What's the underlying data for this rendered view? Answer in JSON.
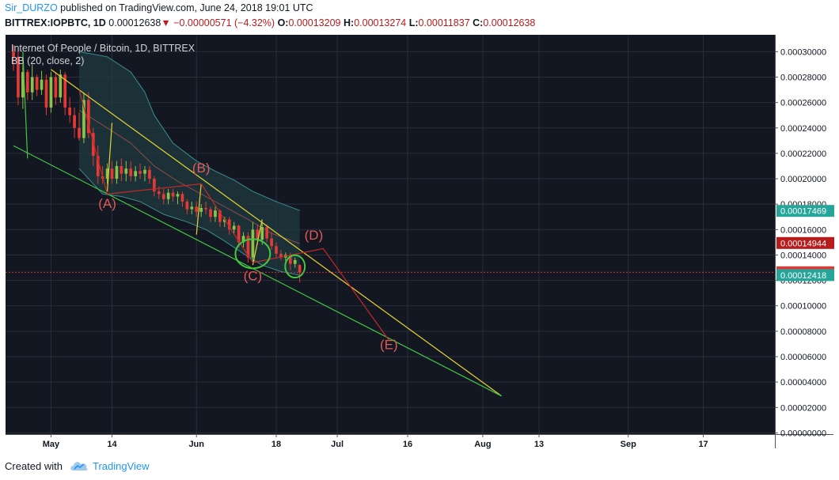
{
  "header": {
    "author": "Sir_DURZO",
    "published": "published on TradingView.com, June 24, 2018 19:01 UTC",
    "symbol_line": "BITTREX:IOPBTC, 1D",
    "last": "0.00012638",
    "change_arrow": "▼",
    "change": "−0.00000571 (−4.32%)",
    "o_label": "O:",
    "o_value": "0.00013209",
    "h_label": "H:",
    "h_value": "0.00013274",
    "l_label": "L:",
    "l_value": "0.00011837",
    "c_label": "C:",
    "c_value": "0.00012638"
  },
  "footer": {
    "created_with": "Created with",
    "brand": "TradingView"
  },
  "colors": {
    "background": "#131722",
    "grid": "#2a2e39",
    "up": "#8bc34a",
    "down": "#e53935",
    "bb_band": "#3a8d93",
    "bb_fill": "#1f3b3f",
    "bb_basis": "#8b4a4a",
    "trend_yellow": "#e6d333",
    "trend_green": "#43c743",
    "wave_red": "#c62828",
    "wave_label": "#e05a5a",
    "axis_text": "#131722"
  },
  "chart_data": {
    "type": "candlestick",
    "title": "Internet Of People / Bitcoin, 1D, BITTREX",
    "indicator": "BB (20, close, 2)",
    "x_ticks": [
      {
        "label": "May",
        "date": "2018-05-01"
      },
      {
        "label": "14",
        "date": "2018-05-14"
      },
      {
        "label": "Jun",
        "date": "2018-06-01"
      },
      {
        "label": "18",
        "date": "2018-06-18"
      },
      {
        "label": "Jul",
        "date": "2018-07-01"
      },
      {
        "label": "16",
        "date": "2018-07-16"
      },
      {
        "label": "Aug",
        "date": "2018-08-01"
      },
      {
        "label": "13",
        "date": "2018-08-13"
      },
      {
        "label": "Sep",
        "date": "2018-09-01"
      },
      {
        "label": "17",
        "date": "2018-09-17"
      }
    ],
    "xlim": [
      "2018-04-23",
      "2018-09-25"
    ],
    "y_ticks": [
      "0.00000000",
      "0.00002000",
      "0.00004000",
      "0.00006000",
      "0.00008000",
      "0.00010000",
      "0.00012000",
      "0.00014000",
      "0.00016000",
      "0.00018000",
      "0.00020000",
      "0.00022000",
      "0.00024000",
      "0.00026000",
      "0.00028000",
      "0.00030000"
    ],
    "ylim": [
      -1e-06,
      0.0003133
    ],
    "price_labels": [
      {
        "text": "0.00017469",
        "value": 0.00017469,
        "color": "#26a69a"
      },
      {
        "text": "0.00014944",
        "value": 0.00014944,
        "color": "#b71c1c"
      },
      {
        "text": "0.00012638",
        "value": 0.00012638,
        "color": "#e53935"
      },
      {
        "text": "0.00012418",
        "value": 0.00012418,
        "color": "#26a69a"
      }
    ],
    "current_price": 0.00012638,
    "candles": [
      {
        "d": "2018-04-23",
        "o": 0.0003,
        "h": 0.000305,
        "l": 0.000285,
        "c": 0.000296
      },
      {
        "d": "2018-04-24",
        "o": 0.000296,
        "h": 0.0003,
        "l": 0.000258,
        "c": 0.000264
      },
      {
        "d": "2018-04-25",
        "o": 0.000264,
        "h": 0.00029,
        "l": 0.000255,
        "c": 0.000284
      },
      {
        "d": "2018-04-26",
        "o": 0.000284,
        "h": 0.000286,
        "l": 0.000262,
        "c": 0.000268
      },
      {
        "d": "2018-04-27",
        "o": 0.000268,
        "h": 0.00029,
        "l": 0.000262,
        "c": 0.00028
      },
      {
        "d": "2018-04-28",
        "o": 0.00028,
        "h": 0.000282,
        "l": 0.000265,
        "c": 0.00027
      },
      {
        "d": "2018-04-29",
        "o": 0.00027,
        "h": 0.000285,
        "l": 0.000266,
        "c": 0.000278
      },
      {
        "d": "2018-04-30",
        "o": 0.000278,
        "h": 0.000282,
        "l": 0.00025,
        "c": 0.000256
      },
      {
        "d": "2018-05-01",
        "o": 0.000256,
        "h": 0.000284,
        "l": 0.000252,
        "c": 0.00028
      },
      {
        "d": "2018-05-02",
        "o": 0.00028,
        "h": 0.000284,
        "l": 0.000258,
        "c": 0.000264
      },
      {
        "d": "2018-05-03",
        "o": 0.000264,
        "h": 0.000286,
        "l": 0.00026,
        "c": 0.000282
      },
      {
        "d": "2018-05-04",
        "o": 0.000282,
        "h": 0.000284,
        "l": 0.00025,
        "c": 0.000256
      },
      {
        "d": "2018-05-05",
        "o": 0.000256,
        "h": 0.000264,
        "l": 0.000244,
        "c": 0.00025
      },
      {
        "d": "2018-05-06",
        "o": 0.00025,
        "h": 0.000256,
        "l": 0.000232,
        "c": 0.00024
      },
      {
        "d": "2018-05-07",
        "o": 0.00024,
        "h": 0.000252,
        "l": 0.00023,
        "c": 0.000232
      },
      {
        "d": "2018-05-08",
        "o": 0.000232,
        "h": 0.000268,
        "l": 0.000228,
        "c": 0.000262
      },
      {
        "d": "2018-05-09",
        "o": 0.000262,
        "h": 0.000268,
        "l": 0.000232,
        "c": 0.000236
      },
      {
        "d": "2018-05-10",
        "o": 0.000236,
        "h": 0.00024,
        "l": 0.00021,
        "c": 0.000218
      },
      {
        "d": "2018-05-11",
        "o": 0.000218,
        "h": 0.000226,
        "l": 0.000196,
        "c": 0.000202
      },
      {
        "d": "2018-05-12",
        "o": 0.000202,
        "h": 0.00021,
        "l": 0.000196,
        "c": 0.0002
      },
      {
        "d": "2018-05-13",
        "o": 0.0002,
        "h": 0.000212,
        "l": 0.000196,
        "c": 0.000208
      },
      {
        "d": "2018-05-14",
        "o": 0.000208,
        "h": 0.000214,
        "l": 0.000196,
        "c": 0.0002
      },
      {
        "d": "2018-05-15",
        "o": 0.0002,
        "h": 0.000214,
        "l": 0.000196,
        "c": 0.00021
      },
      {
        "d": "2018-05-16",
        "o": 0.00021,
        "h": 0.000216,
        "l": 0.000198,
        "c": 0.000204
      },
      {
        "d": "2018-05-17",
        "o": 0.000204,
        "h": 0.000214,
        "l": 0.000198,
        "c": 0.000208
      },
      {
        "d": "2018-05-18",
        "o": 0.000208,
        "h": 0.000214,
        "l": 0.000198,
        "c": 0.000202
      },
      {
        "d": "2018-05-19",
        "o": 0.000202,
        "h": 0.00021,
        "l": 0.000198,
        "c": 0.000206
      },
      {
        "d": "2018-05-20",
        "o": 0.000206,
        "h": 0.000212,
        "l": 0.0002,
        "c": 0.000204
      },
      {
        "d": "2018-05-21",
        "o": 0.000204,
        "h": 0.00021,
        "l": 0.000198,
        "c": 0.000207
      },
      {
        "d": "2018-05-22",
        "o": 0.000207,
        "h": 0.00021,
        "l": 0.000196,
        "c": 0.0002
      },
      {
        "d": "2018-05-23",
        "o": 0.0002,
        "h": 0.000202,
        "l": 0.000186,
        "c": 0.00019
      },
      {
        "d": "2018-05-24",
        "o": 0.00019,
        "h": 0.000194,
        "l": 0.000184,
        "c": 0.000188
      },
      {
        "d": "2018-05-25",
        "o": 0.000188,
        "h": 0.000192,
        "l": 0.00018,
        "c": 0.000184
      },
      {
        "d": "2018-05-26",
        "o": 0.000184,
        "h": 0.000192,
        "l": 0.00018,
        "c": 0.000189
      },
      {
        "d": "2018-05-27",
        "o": 0.000189,
        "h": 0.000192,
        "l": 0.000182,
        "c": 0.000186
      },
      {
        "d": "2018-05-28",
        "o": 0.000186,
        "h": 0.00019,
        "l": 0.00018,
        "c": 0.000188
      },
      {
        "d": "2018-05-29",
        "o": 0.000188,
        "h": 0.00019,
        "l": 0.000178,
        "c": 0.000182
      },
      {
        "d": "2018-05-30",
        "o": 0.000182,
        "h": 0.000184,
        "l": 0.000172,
        "c": 0.000176
      },
      {
        "d": "2018-05-31",
        "o": 0.000176,
        "h": 0.000182,
        "l": 0.000172,
        "c": 0.000178
      },
      {
        "d": "2018-06-01",
        "o": 0.000178,
        "h": 0.000182,
        "l": 0.00017,
        "c": 0.000174
      },
      {
        "d": "2018-06-02",
        "o": 0.000174,
        "h": 0.00018,
        "l": 0.00017,
        "c": 0.000177
      },
      {
        "d": "2018-06-03",
        "o": 0.000177,
        "h": 0.000182,
        "l": 0.000172,
        "c": 0.000176
      },
      {
        "d": "2018-06-04",
        "o": 0.000176,
        "h": 0.000178,
        "l": 0.000166,
        "c": 0.00017
      },
      {
        "d": "2018-06-05",
        "o": 0.00017,
        "h": 0.000178,
        "l": 0.000166,
        "c": 0.000175
      },
      {
        "d": "2018-06-06",
        "o": 0.000175,
        "h": 0.000176,
        "l": 0.000162,
        "c": 0.000166
      },
      {
        "d": "2018-06-07",
        "o": 0.000166,
        "h": 0.00017,
        "l": 0.000162,
        "c": 0.000168
      },
      {
        "d": "2018-06-08",
        "o": 0.000168,
        "h": 0.00017,
        "l": 0.000156,
        "c": 0.00016
      },
      {
        "d": "2018-06-09",
        "o": 0.00016,
        "h": 0.000166,
        "l": 0.000156,
        "c": 0.000163
      },
      {
        "d": "2018-06-10",
        "o": 0.000163,
        "h": 0.000164,
        "l": 0.000146,
        "c": 0.00015
      },
      {
        "d": "2018-06-11",
        "o": 0.00015,
        "h": 0.000158,
        "l": 0.000146,
        "c": 0.000155
      },
      {
        "d": "2018-06-12",
        "o": 0.000155,
        "h": 0.000158,
        "l": 0.000134,
        "c": 0.000138
      },
      {
        "d": "2018-06-13",
        "o": 0.000138,
        "h": 0.000166,
        "l": 0.000134,
        "c": 0.00016
      },
      {
        "d": "2018-06-14",
        "o": 0.00016,
        "h": 0.000164,
        "l": 0.000148,
        "c": 0.000152
      },
      {
        "d": "2018-06-15",
        "o": 0.000152,
        "h": 0.000166,
        "l": 0.000148,
        "c": 0.000162
      },
      {
        "d": "2018-06-16",
        "o": 0.000162,
        "h": 0.000164,
        "l": 0.00015,
        "c": 0.000153
      },
      {
        "d": "2018-06-17",
        "o": 0.000153,
        "h": 0.000158,
        "l": 0.000144,
        "c": 0.000147
      },
      {
        "d": "2018-06-18",
        "o": 0.000147,
        "h": 0.00015,
        "l": 0.000138,
        "c": 0.000141
      },
      {
        "d": "2018-06-19",
        "o": 0.000141,
        "h": 0.000144,
        "l": 0.000136,
        "c": 0.000138
      },
      {
        "d": "2018-06-20",
        "o": 0.000138,
        "h": 0.000142,
        "l": 0.000134,
        "c": 0.00014
      },
      {
        "d": "2018-06-21",
        "o": 0.00014,
        "h": 0.000142,
        "l": 0.000128,
        "c": 0.000133
      },
      {
        "d": "2018-06-22",
        "o": 0.000133,
        "h": 0.000138,
        "l": 0.00013,
        "c": 0.000136
      },
      {
        "d": "2018-06-23",
        "o": 0.00013209,
        "h": 0.00013274,
        "l": 0.00011837,
        "c": 0.00012638
      }
    ],
    "bb_upper": [
      [
        "2018-05-07",
        0.0003
      ],
      [
        "2018-05-13",
        0.000296
      ],
      [
        "2018-05-18",
        0.000284
      ],
      [
        "2018-05-21",
        0.000268
      ],
      [
        "2018-05-23",
        0.00025
      ],
      [
        "2018-05-27",
        0.000228
      ],
      [
        "2018-06-01",
        0.000214
      ],
      [
        "2018-06-05",
        0.000206
      ],
      [
        "2018-06-09",
        0.000199
      ],
      [
        "2018-06-13",
        0.00019
      ],
      [
        "2018-06-18",
        0.000182
      ],
      [
        "2018-06-23",
        0.000175
      ]
    ],
    "bb_lower": [
      [
        "2018-05-07",
        0.000208
      ],
      [
        "2018-05-12",
        0.000188
      ],
      [
        "2018-05-16",
        0.000186
      ],
      [
        "2018-05-20",
        0.000182
      ],
      [
        "2018-05-25",
        0.000172
      ],
      [
        "2018-05-30",
        0.000166
      ],
      [
        "2018-06-03",
        0.00016
      ],
      [
        "2018-06-07",
        0.000151
      ],
      [
        "2018-06-11",
        0.000141
      ],
      [
        "2018-06-15",
        0.000132
      ],
      [
        "2018-06-19",
        0.000127
      ],
      [
        "2018-06-23",
        0.000124
      ]
    ],
    "bb_basis": [
      [
        "2018-05-07",
        0.000254
      ],
      [
        "2018-05-13",
        0.00024
      ],
      [
        "2018-05-18",
        0.000228
      ],
      [
        "2018-05-23",
        0.00021
      ],
      [
        "2018-05-28",
        0.000198
      ],
      [
        "2018-06-02",
        0.000188
      ],
      [
        "2018-06-07",
        0.000178
      ],
      [
        "2018-06-12",
        0.000168
      ],
      [
        "2018-06-17",
        0.000157
      ],
      [
        "2018-06-23",
        0.000149
      ]
    ],
    "annotations": {
      "trendlines": [
        {
          "name": "yellow-upper-trendline",
          "color": "yellow",
          "points": [
            [
              "2018-05-01",
              0.000286
            ],
            [
              "2018-08-05",
              2.9e-05
            ]
          ]
        },
        {
          "name": "green-lower-trendline",
          "color": "green",
          "points": [
            [
              "2018-04-23",
              0.000226
            ],
            [
              "2018-08-05",
              2.9e-05
            ]
          ]
        },
        {
          "name": "green-vertical-tick",
          "color": "green",
          "points": [
            [
              "2018-04-25",
              0.0003
            ],
            [
              "2018-04-26",
              0.000216
            ]
          ]
        },
        {
          "name": "yellow-tick-a",
          "color": "yellow",
          "points": [
            [
              "2018-05-13",
              0.00019
            ],
            [
              "2018-05-14",
              0.000244
            ]
          ]
        },
        {
          "name": "yellow-tick-b",
          "color": "yellow",
          "points": [
            [
              "2018-06-01",
              0.000156
            ],
            [
              "2018-06-02",
              0.000196
            ]
          ]
        },
        {
          "name": "yellow-tick-c",
          "color": "yellow",
          "points": [
            [
              "2018-06-13",
              0.000132
            ],
            [
              "2018-06-15",
              0.000168
            ]
          ]
        }
      ],
      "wave_path": [
        [
          "2018-05-07",
          0.00027
        ],
        [
          "2018-05-13",
          0.000188
        ],
        [
          "2018-06-02",
          0.000196
        ],
        [
          "2018-06-13",
          0.000134
        ],
        [
          "2018-06-28",
          0.000145
        ],
        [
          "2018-07-12",
          7.3e-05
        ]
      ],
      "ellipses": [
        {
          "name": "ellipse-c",
          "cx": "2018-06-13",
          "cy": 0.000141,
          "rx_days": 3.7,
          "ry": 1.15e-05
        },
        {
          "name": "ellipse-d",
          "cx": "2018-06-22",
          "cy": 0.000131,
          "rx_days": 2.1,
          "ry": 8.8e-06
        }
      ],
      "wave_labels": [
        {
          "text": "(A)",
          "d": "2018-05-13",
          "v": 0.000177
        },
        {
          "text": "(B)",
          "d": "2018-06-02",
          "v": 0.000205
        },
        {
          "text": "(C)",
          "d": "2018-06-13",
          "v": 0.00012
        },
        {
          "text": "(D)",
          "d": "2018-06-26",
          "v": 0.000152
        },
        {
          "text": "(E)",
          "d": "2018-07-12",
          "v": 6.6e-05
        }
      ]
    }
  }
}
